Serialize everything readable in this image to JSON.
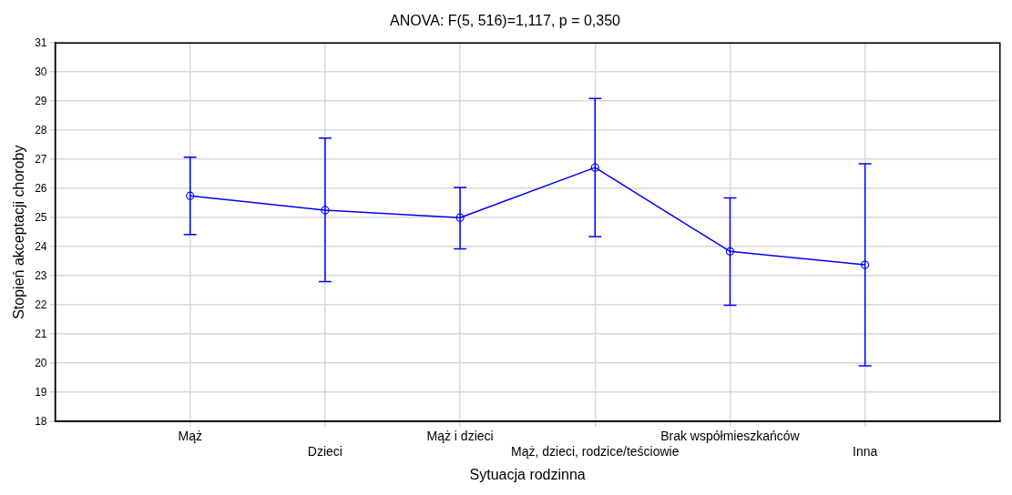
{
  "chart_data": {
    "type": "line",
    "title": "ANOVA: F(5, 516)=1,117, p = 0,350",
    "xlabel": "Sytuacja rodzinna",
    "ylabel": "Stopień akceptacji choroby",
    "categories": [
      "Mąż",
      "Dzieci",
      "Mąż i dzieci",
      "Mąż, dzieci, rodzice/teściowie",
      "Brak współmieszkańców",
      "Inna"
    ],
    "series": [
      {
        "color": "#0000ff",
        "values": [
          25.75,
          25.26,
          25.0,
          26.72,
          23.84,
          23.38
        ],
        "errors": [
          [
            24.42,
            27.08
          ],
          [
            22.8,
            27.73
          ],
          [
            23.93,
            26.04
          ],
          [
            24.35,
            29.09
          ],
          [
            21.99,
            25.68
          ],
          [
            19.91,
            26.85
          ]
        ]
      }
    ],
    "ylim": [
      18,
      31
    ],
    "yticks": [
      18,
      19,
      20,
      21,
      22,
      23,
      24,
      25,
      26,
      27,
      28,
      29,
      30,
      31
    ],
    "grid": true,
    "legend": false,
    "marker": "circle",
    "line_style": "solid"
  }
}
